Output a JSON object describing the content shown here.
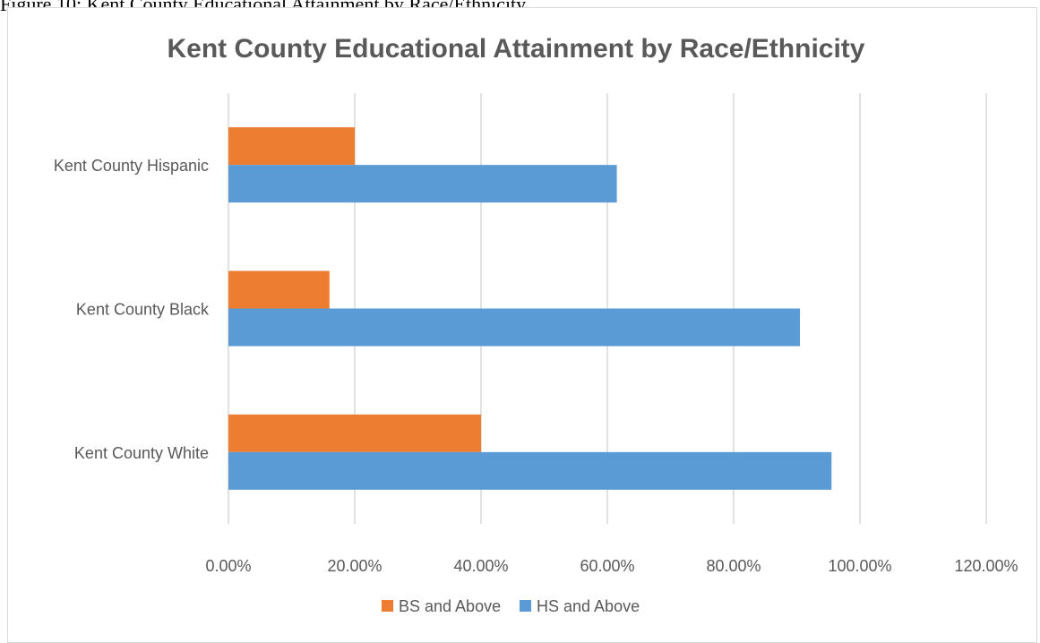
{
  "figure_caption": "Figure 10: Kent County Educational Attainment by Race/Ethnicity",
  "chart_data": {
    "type": "bar",
    "orientation": "horizontal",
    "title": "Kent County Educational Attainment by Race/Ethnicity",
    "xlabel": "",
    "ylabel": "",
    "categories": [
      "Kent County Hispanic",
      "Kent County Black",
      "Kent County White"
    ],
    "series": [
      {
        "name": "BS and Above",
        "color": "#ED7D31",
        "values": [
          0.2,
          0.16,
          0.4
        ]
      },
      {
        "name": "HS and Above",
        "color": "#5B9BD5",
        "values": [
          0.615,
          0.905,
          0.955
        ]
      }
    ],
    "xlim": [
      0,
      1.2
    ],
    "x_ticks": [
      0,
      0.2,
      0.4,
      0.6,
      0.8,
      1.0,
      1.2
    ],
    "x_tick_labels": [
      "0.00%",
      "20.00%",
      "40.00%",
      "60.00%",
      "80.00%",
      "100.00%",
      "120.00%"
    ],
    "grid": true,
    "grid_color": "#d9d9d9",
    "legend_position": "bottom"
  }
}
